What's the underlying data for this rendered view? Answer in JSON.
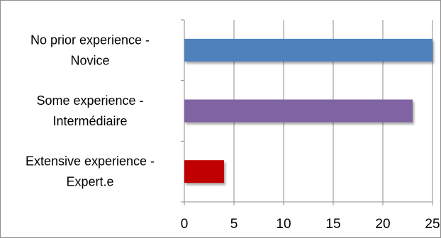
{
  "chart_data": {
    "type": "bar",
    "orientation": "horizontal",
    "categories": [
      [
        "No prior experience -",
        "Novice"
      ],
      [
        "Some experience -",
        "Intermédiaire"
      ],
      [
        "Extensive experience -",
        "Expert.e"
      ]
    ],
    "values": [
      25,
      23,
      4
    ],
    "colors": [
      "#4f81bd",
      "#8064a2",
      "#c00000"
    ],
    "xlim": [
      0,
      25
    ],
    "x_ticks": [
      0,
      5,
      10,
      15,
      20,
      25
    ],
    "grid": true,
    "legend": "none"
  }
}
